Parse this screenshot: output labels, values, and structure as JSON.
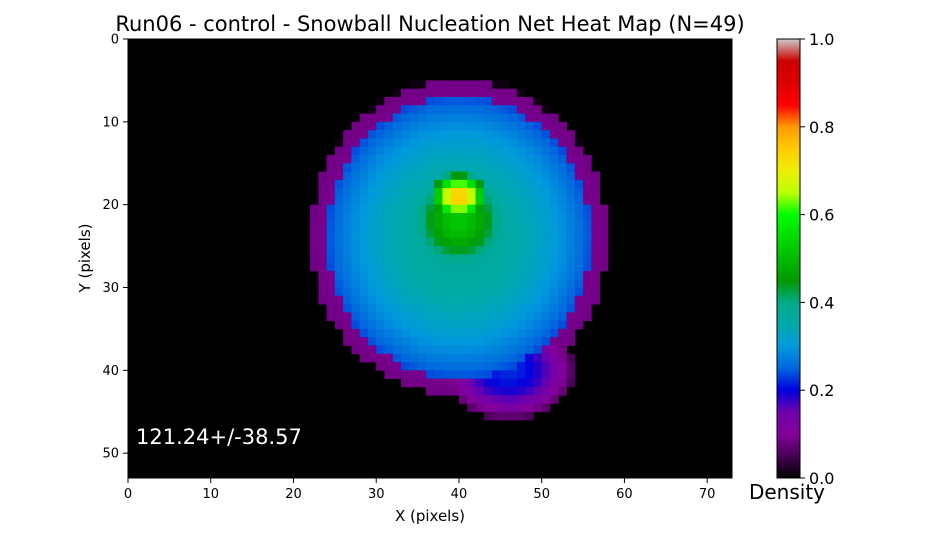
{
  "chart_data": {
    "type": "heatmap",
    "title": "Run06 - control - Snowball Nucleation Net Heat Map (N=49)",
    "xlabel": "X (pixels)",
    "ylabel": "Y (pixels)",
    "xlim": [
      0,
      73
    ],
    "ylim": [
      53,
      0
    ],
    "xticks": [
      "0",
      "10",
      "20",
      "30",
      "40",
      "50",
      "60",
      "70"
    ],
    "yticks": [
      "0",
      "10",
      "20",
      "30",
      "40",
      "50"
    ],
    "colorbar": {
      "label": "Density",
      "range": [
        0.0,
        1.0
      ],
      "ticks": [
        "0.0",
        "0.2",
        "0.4",
        "0.6",
        "0.8",
        "1.0"
      ],
      "colormap": "nipy_spectral"
    },
    "annotation": "121.24+/-38.57",
    "hotspot": {
      "outer_blob": {
        "cx": 40,
        "cy": 24,
        "rx": 18,
        "ry": 19,
        "density": 0.12
      },
      "body": {
        "cx": 40,
        "cy": 24,
        "rx": 16,
        "ry": 17,
        "density": 0.32
      },
      "core": {
        "cx": 40,
        "cy": 22,
        "rx": 13,
        "ry": 13,
        "density": 0.45
      },
      "peak": {
        "cx": 40,
        "cy": 19,
        "rx": 6,
        "ry": 5,
        "density": 0.69
      },
      "lower_lobe": {
        "cx": 46,
        "cy": 40,
        "rx": 8,
        "ry": 6,
        "density": 0.22
      },
      "grid": {
        "nx": 73,
        "ny": 53
      }
    }
  }
}
